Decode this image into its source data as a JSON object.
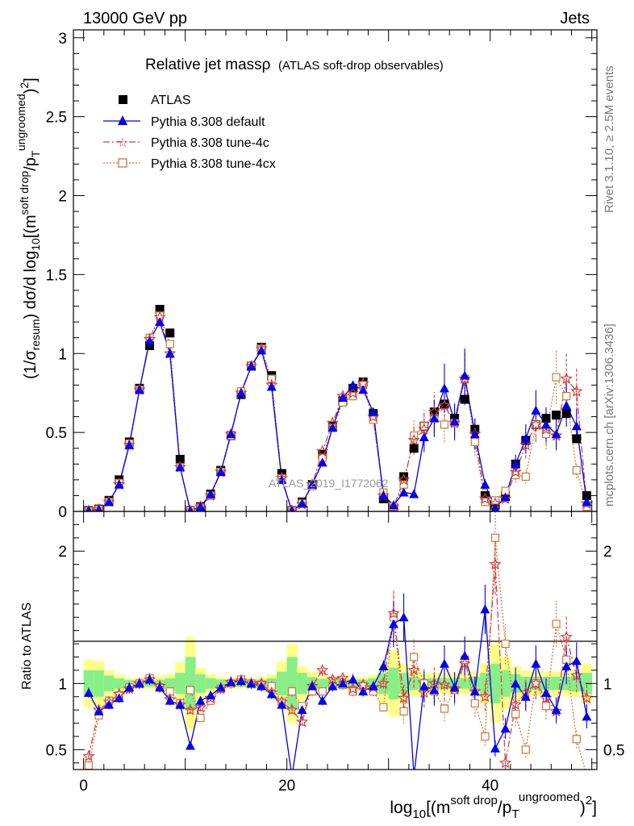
{
  "header": {
    "left": "13000 GeV pp",
    "right": "Jets"
  },
  "side_labels": {
    "rivet": "Rivet 3.1.10, ≥ 2.5M events",
    "mcplots": "mcplots.cern.ch [arXiv:1306.3436]"
  },
  "watermark": "ATLAS_2019_I1772062",
  "chart_data": [
    {
      "type": "scatter",
      "title": "Relative jet massρ (ATLAS soft-drop observables)",
      "title_main": "Relative jet massρ",
      "title_sub": "(ATLAS soft-drop observables)",
      "ylabel": "(1/σresum) dσ/d log10[(msoft drop/pTungroomed)2]",
      "ylim": [
        0,
        3.05
      ],
      "xlim": [
        -1,
        50.5
      ],
      "yticks": [
        "0",
        "0.5",
        "1",
        "1.5",
        "2",
        "2.5",
        "3"
      ],
      "legend_position": "top-left",
      "legend": [
        "ATLAS",
        "Pythia 8.308 default",
        "Pythia 8.308 tune-4c",
        "Pythia 8.308 tune-4cx"
      ],
      "colors": {
        "ATLAS": "#000000",
        "default": "#0000ee",
        "tune4c": "#d44040",
        "tune4cx": "#c8783c"
      },
      "x": [
        0.5,
        1.5,
        2.5,
        3.5,
        4.5,
        5.5,
        6.5,
        7.5,
        8.5,
        9.5,
        10.5,
        11.5,
        12.5,
        13.5,
        14.5,
        15.5,
        16.5,
        17.5,
        18.5,
        19.5,
        20.5,
        21.5,
        22.5,
        23.5,
        24.5,
        25.5,
        26.5,
        27.5,
        28.5,
        29.5,
        30.5,
        31.5,
        32.5,
        33.5,
        34.5,
        35.5,
        36.5,
        37.5,
        38.5,
        39.5,
        40.5,
        41.5,
        42.5,
        43.5,
        44.5,
        45.5,
        46.5,
        47.5,
        48.5,
        49.5
      ],
      "series": [
        {
          "name": "ATLAS",
          "values": [
            0.005,
            0.015,
            0.07,
            0.2,
            0.44,
            0.78,
            1.05,
            1.28,
            1.13,
            0.33,
            0.005,
            0.03,
            0.11,
            0.26,
            0.48,
            0.74,
            0.92,
            1.04,
            0.86,
            0.24,
            0.005,
            0.06,
            0.17,
            0.36,
            0.54,
            0.7,
            0.78,
            0.82,
            0.62,
            0.08,
            0.02,
            0.22,
            0.4,
            0.54,
            0.63,
            0.68,
            0.59,
            0.71,
            0.52,
            0.1,
            0.04,
            0.1,
            0.3,
            0.45,
            0.55,
            0.59,
            0.61,
            0.62,
            0.46,
            0.1
          ]
        },
        {
          "name": "Pythia 8.308 default",
          "values": [
            0.005,
            0.012,
            0.06,
            0.17,
            0.42,
            0.77,
            1.08,
            1.2,
            1.0,
            0.28,
            0.005,
            0.03,
            0.11,
            0.25,
            0.49,
            0.75,
            0.92,
            1.02,
            0.79,
            0.2,
            0.005,
            0.05,
            0.17,
            0.31,
            0.53,
            0.72,
            0.8,
            0.77,
            0.63,
            0.1,
            0.04,
            0.12,
            0.11,
            0.47,
            0.59,
            0.78,
            0.57,
            0.86,
            0.49,
            0.17,
            0.02,
            0.09,
            0.3,
            0.46,
            0.64,
            0.55,
            0.49,
            0.67,
            0.54,
            0.06
          ]
        },
        {
          "name": "Pythia 8.308 tune-4c",
          "values": [
            0.003,
            0.012,
            0.06,
            0.17,
            0.42,
            0.77,
            1.09,
            1.23,
            1.0,
            0.28,
            0.004,
            0.03,
            0.1,
            0.25,
            0.49,
            0.75,
            0.92,
            1.03,
            0.8,
            0.21,
            0.004,
            0.045,
            0.17,
            0.38,
            0.56,
            0.73,
            0.75,
            0.81,
            0.6,
            0.1,
            0.03,
            0.2,
            0.45,
            0.52,
            0.63,
            0.67,
            0.56,
            0.84,
            0.49,
            0.08,
            0.05,
            0.08,
            0.25,
            0.42,
            0.55,
            0.52,
            0.48,
            0.84,
            0.76,
            0.05
          ]
        },
        {
          "name": "Pythia 8.308 tune-4cx",
          "values": [
            0.002,
            0.012,
            0.06,
            0.18,
            0.43,
            0.77,
            1.1,
            1.24,
            1.06,
            0.28,
            0.004,
            0.025,
            0.1,
            0.25,
            0.48,
            0.76,
            0.92,
            1.03,
            0.84,
            0.21,
            0.004,
            0.05,
            0.16,
            0.34,
            0.53,
            0.69,
            0.73,
            0.8,
            0.58,
            0.12,
            0.03,
            0.17,
            0.48,
            0.54,
            0.59,
            0.55,
            0.56,
            0.84,
            0.44,
            0.06,
            0.07,
            0.13,
            0.23,
            0.22,
            0.55,
            0.49,
            0.85,
            0.73,
            0.26,
            0.03
          ]
        }
      ]
    },
    {
      "type": "scatter",
      "ylabel": "Ratio to ATLAS",
      "ylim": [
        0.35,
        2.3
      ],
      "xlim": [
        -1,
        50.5
      ],
      "yticks": [
        "0.5",
        "1",
        "2"
      ],
      "xticks": [
        "0",
        "20",
        "40"
      ],
      "xlabel": "log10[(msoft drop/pTungroomed)2]",
      "x": [
        0.5,
        1.5,
        2.5,
        3.5,
        4.5,
        5.5,
        6.5,
        7.5,
        8.5,
        9.5,
        10.5,
        11.5,
        12.5,
        13.5,
        14.5,
        15.5,
        16.5,
        17.5,
        18.5,
        19.5,
        20.5,
        21.5,
        22.5,
        23.5,
        24.5,
        25.5,
        26.5,
        27.5,
        28.5,
        29.5,
        30.5,
        31.5,
        32.5,
        33.5,
        34.5,
        35.5,
        36.5,
        37.5,
        38.5,
        39.5,
        40.5,
        41.5,
        42.5,
        43.5,
        44.5,
        45.5,
        46.5,
        47.5,
        48.5,
        49.5
      ],
      "band_yellow_half": [
        0.18,
        0.17,
        0.1,
        0.07,
        0.04,
        0.04,
        0.04,
        0.06,
        0.07,
        0.16,
        0.35,
        0.12,
        0.07,
        0.05,
        0.04,
        0.04,
        0.04,
        0.05,
        0.07,
        0.17,
        0.3,
        0.13,
        0.09,
        0.06,
        0.05,
        0.05,
        0.05,
        0.05,
        0.07,
        0.15,
        0.25,
        0.15,
        0.1,
        0.08,
        0.08,
        0.08,
        0.08,
        0.08,
        0.09,
        0.15,
        0.3,
        0.2,
        0.13,
        0.1,
        0.09,
        0.09,
        0.09,
        0.09,
        0.1,
        0.15
      ],
      "band_green_half": [
        0.1,
        0.1,
        0.06,
        0.04,
        0.025,
        0.025,
        0.025,
        0.03,
        0.04,
        0.08,
        0.2,
        0.07,
        0.04,
        0.03,
        0.025,
        0.025,
        0.025,
        0.03,
        0.04,
        0.09,
        0.2,
        0.08,
        0.05,
        0.035,
        0.03,
        0.03,
        0.03,
        0.03,
        0.04,
        0.08,
        0.12,
        0.08,
        0.05,
        0.04,
        0.04,
        0.04,
        0.04,
        0.04,
        0.05,
        0.08,
        0.15,
        0.1,
        0.07,
        0.05,
        0.05,
        0.05,
        0.05,
        0.05,
        0.06,
        0.08
      ],
      "series": [
        {
          "name": "Pythia 8.308 default",
          "values": [
            0.93,
            0.79,
            0.84,
            0.89,
            0.97,
            1.0,
            1.03,
            0.97,
            0.87,
            0.84,
            0.53,
            0.87,
            0.91,
            0.97,
            1.01,
            1.02,
            1.0,
            0.98,
            0.92,
            0.84,
            0.3,
            0.8,
            0.98,
            0.87,
            0.98,
            1.0,
            1.03,
            0.94,
            0.98,
            1.13,
            1.45,
            1.5,
            0.3,
            0.98,
            0.95,
            1.15,
            0.97,
            1.21,
            0.94,
            1.56,
            0.51,
            0.66,
            1.0,
            0.9,
            1.15,
            0.93,
            0.8,
            1.13,
            1.17,
            0.75
          ]
        },
        {
          "name": "Pythia 8.308 tune-4c",
          "values": [
            0.45,
            0.8,
            0.86,
            0.92,
            0.96,
            1.0,
            1.03,
            0.98,
            0.88,
            0.84,
            0.8,
            0.82,
            0.89,
            0.96,
            1.01,
            1.02,
            1.0,
            1.0,
            0.93,
            0.86,
            0.8,
            0.71,
            0.98,
            1.1,
            1.03,
            1.04,
            0.96,
            0.99,
            0.97,
            1.0,
            1.53,
            0.89,
            1.1,
            0.93,
            1.0,
            0.99,
            0.96,
            1.15,
            0.94,
            0.9,
            1.9,
            0.4,
            0.84,
            0.93,
            1.0,
            0.89,
            0.79,
            1.35,
            1.06,
            0.89
          ]
        },
        {
          "name": "Pythia 8.308 tune-4cx",
          "values": [
            0.38,
            0.76,
            0.87,
            0.91,
            0.97,
            1.0,
            1.04,
            0.97,
            0.94,
            0.85,
            0.95,
            0.74,
            0.87,
            0.96,
            1.0,
            1.03,
            1.0,
            0.99,
            0.98,
            0.86,
            0.94,
            0.83,
            0.94,
            0.94,
            0.98,
            0.99,
            0.94,
            0.98,
            0.94,
            0.82,
            1.5,
            0.79,
            1.2,
            1.0,
            0.94,
            0.81,
            0.95,
            1.18,
            0.85,
            0.6,
            2.1,
            1.3,
            0.77,
            0.5,
            1.0,
            0.83,
            1.45,
            1.18,
            0.58,
            0.3
          ]
        }
      ]
    }
  ]
}
